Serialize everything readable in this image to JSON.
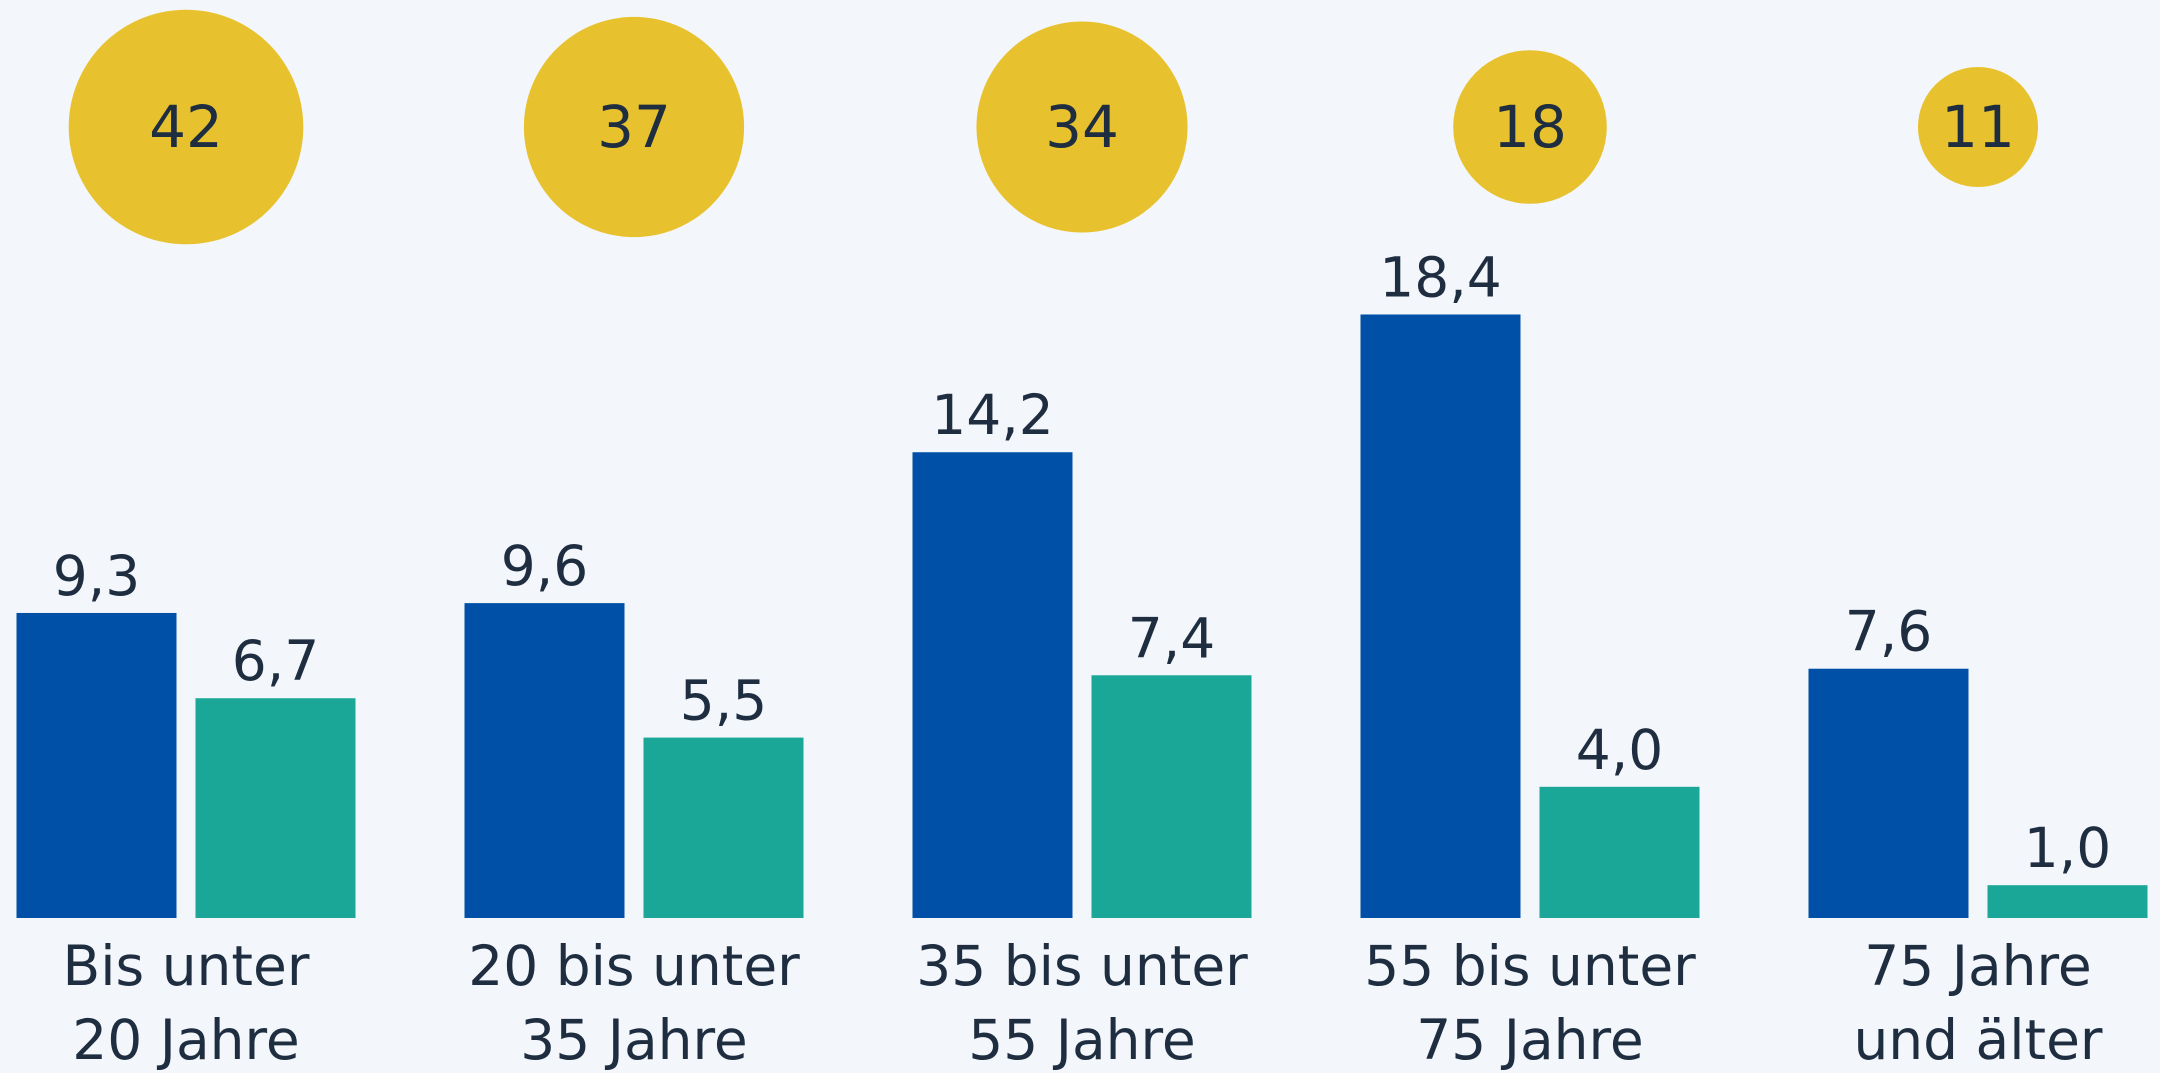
{
  "chart_data": {
    "type": "bar",
    "categories": [
      [
        "Bis unter",
        "20 Jahre"
      ],
      [
        "20 bis unter",
        "35 Jahre"
      ],
      [
        "35 bis unter",
        "55 Jahre"
      ],
      [
        "55 bis unter",
        "75 Jahre"
      ],
      [
        "75 Jahre",
        "und älter"
      ]
    ],
    "series": [
      {
        "color": "#0050a8",
        "values": [
          9.3,
          9.6,
          14.2,
          18.4,
          7.6
        ],
        "value_labels": [
          "9,3",
          "9,6",
          "14,2",
          "18,4",
          "7,6"
        ]
      },
      {
        "color": "#1aa797",
        "values": [
          6.7,
          5.5,
          7.4,
          4.0,
          1.0
        ],
        "value_labels": [
          "6,7",
          "5,5",
          "7,4",
          "4,0",
          "1,0"
        ]
      }
    ],
    "bubbles": {
      "color": "#e8c22e",
      "values": [
        42,
        37,
        34,
        18,
        11
      ]
    },
    "ylim": [
      0,
      20
    ]
  }
}
